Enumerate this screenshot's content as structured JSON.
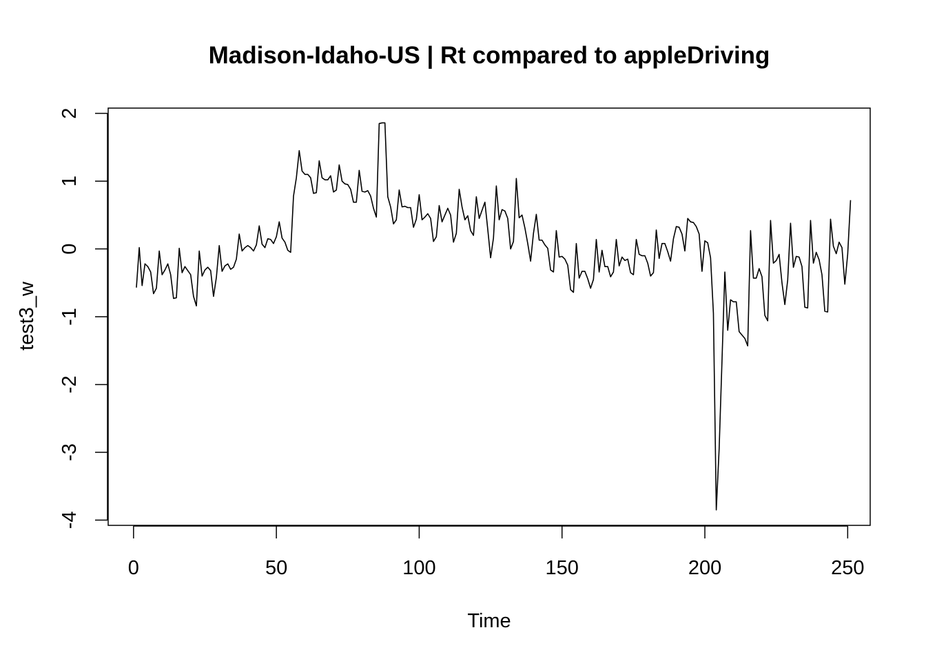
{
  "chart_data": {
    "type": "line",
    "title": "Madison-Idaho-US | Rt compared to appleDriving",
    "xlabel": "Time",
    "ylabel": "test3_w",
    "xlim": [
      1,
      248
    ],
    "ylim": [
      -3.85,
      1.85
    ],
    "x_ticks": [
      0,
      50,
      100,
      150,
      200,
      250
    ],
    "y_ticks": [
      -4,
      -3,
      -2,
      -1,
      0,
      1,
      2
    ],
    "grid": false,
    "legend": "none",
    "series": [
      {
        "color": "#000000",
        "x_start": 1,
        "values": [
          -0.57,
          0.02,
          -0.54,
          -0.22,
          -0.26,
          -0.34,
          -0.66,
          -0.58,
          -0.03,
          -0.38,
          -0.31,
          -0.22,
          -0.38,
          -0.73,
          -0.72,
          0.01,
          -0.35,
          -0.26,
          -0.32,
          -0.38,
          -0.7,
          -0.84,
          -0.03,
          -0.4,
          -0.31,
          -0.27,
          -0.32,
          -0.7,
          -0.42,
          0.05,
          -0.33,
          -0.25,
          -0.22,
          -0.3,
          -0.27,
          -0.15,
          0.22,
          -0.03,
          0.02,
          0.05,
          0.02,
          -0.03,
          0.06,
          0.34,
          0.07,
          0.02,
          0.15,
          0.14,
          0.08,
          0.18,
          0.4,
          0.16,
          0.1,
          -0.02,
          -0.05,
          0.78,
          1.05,
          1.45,
          1.15,
          1.1,
          1.1,
          1.05,
          0.82,
          0.83,
          1.3,
          1.05,
          1.02,
          1.02,
          1.08,
          0.84,
          0.87,
          1.24,
          1.0,
          0.96,
          0.95,
          0.88,
          0.69,
          0.69,
          1.16,
          0.85,
          0.84,
          0.86,
          0.78,
          0.6,
          0.47,
          1.85,
          1.86,
          1.86,
          0.77,
          0.62,
          0.37,
          0.43,
          0.87,
          0.62,
          0.63,
          0.61,
          0.61,
          0.32,
          0.44,
          0.8,
          0.43,
          0.47,
          0.52,
          0.45,
          0.11,
          0.18,
          0.64,
          0.4,
          0.5,
          0.6,
          0.5,
          0.1,
          0.23,
          0.88,
          0.62,
          0.43,
          0.49,
          0.27,
          0.2,
          0.77,
          0.45,
          0.57,
          0.69,
          0.29,
          -0.13,
          0.16,
          0.93,
          0.43,
          0.58,
          0.56,
          0.45,
          0.0,
          0.11,
          1.04,
          0.46,
          0.5,
          0.31,
          0.08,
          -0.18,
          0.23,
          0.51,
          0.13,
          0.13,
          0.06,
          0.01,
          -0.31,
          -0.34,
          0.27,
          -0.12,
          -0.11,
          -0.15,
          -0.24,
          -0.6,
          -0.64,
          0.08,
          -0.43,
          -0.33,
          -0.33,
          -0.44,
          -0.58,
          -0.45,
          0.14,
          -0.34,
          -0.02,
          -0.26,
          -0.26,
          -0.41,
          -0.34,
          0.14,
          -0.25,
          -0.12,
          -0.17,
          -0.15,
          -0.35,
          -0.38,
          0.14,
          -0.08,
          -0.1,
          -0.1,
          -0.21,
          -0.4,
          -0.35,
          0.28,
          -0.14,
          0.08,
          0.08,
          -0.04,
          -0.18,
          0.15,
          0.33,
          0.32,
          0.22,
          -0.03,
          0.45,
          0.4,
          0.39,
          0.33,
          0.22,
          -0.33,
          0.12,
          0.09,
          -0.13,
          -0.95,
          -3.85,
          -2.95,
          -1.65,
          -0.34,
          -1.2,
          -0.75,
          -0.78,
          -0.78,
          -1.22,
          -1.27,
          -1.32,
          -1.43,
          0.27,
          -0.43,
          -0.43,
          -0.29,
          -0.41,
          -0.98,
          -1.06,
          0.42,
          -0.21,
          -0.17,
          -0.08,
          -0.5,
          -0.82,
          -0.46,
          0.38,
          -0.27,
          -0.11,
          -0.12,
          -0.26,
          -0.86,
          -0.87,
          0.42,
          -0.21,
          -0.05,
          -0.16,
          -0.38,
          -0.92,
          -0.93,
          0.44,
          0.04,
          -0.07,
          0.1,
          0.02,
          -0.52,
          -0.08,
          0.72
        ]
      }
    ]
  }
}
